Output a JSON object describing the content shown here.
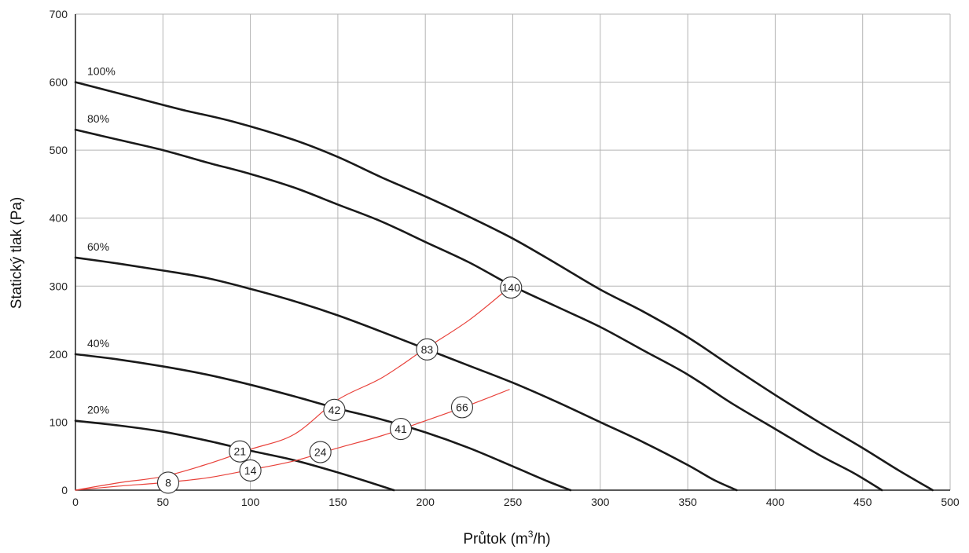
{
  "chart_data": {
    "type": "line",
    "title": "",
    "xlabel_main": "Průtok (m",
    "xlabel_sup": "3",
    "xlabel_tail": "/h)",
    "ylabel": "Statický tlak (Pa)",
    "xlim": [
      0,
      500
    ],
    "ylim": [
      0,
      700
    ],
    "x_ticks": [
      0,
      50,
      100,
      150,
      200,
      250,
      300,
      350,
      400,
      450,
      500
    ],
    "y_ticks": [
      0,
      100,
      200,
      300,
      400,
      500,
      600,
      700
    ],
    "grid": true,
    "colors": {
      "fan_curve": "#1a1a1a",
      "system_curve": "#e8413a",
      "grid": "#b5b5b5"
    },
    "series": [
      {
        "name": "100%",
        "kind": "fan",
        "x": [
          0,
          30,
          60,
          90,
          125,
          150,
          175,
          200,
          225,
          250,
          275,
          300,
          325,
          350,
          375,
          400,
          425,
          450,
          470,
          490
        ],
        "y": [
          600,
          580,
          560,
          542,
          515,
          490,
          460,
          432,
          402,
          370,
          333,
          295,
          262,
          225,
          182,
          140,
          100,
          62,
          30,
          0
        ]
      },
      {
        "name": "80%",
        "kind": "fan",
        "x": [
          0,
          25,
          50,
          75,
          100,
          125,
          150,
          175,
          200,
          225,
          250,
          275,
          300,
          325,
          350,
          375,
          400,
          425,
          445,
          461
        ],
        "y": [
          530,
          515,
          500,
          482,
          465,
          445,
          420,
          395,
          365,
          335,
          300,
          270,
          240,
          205,
          170,
          128,
          90,
          52,
          25,
          0
        ]
      },
      {
        "name": "60%",
        "kind": "fan",
        "x": [
          0,
          25,
          50,
          75,
          100,
          125,
          150,
          175,
          200,
          225,
          250,
          275,
          300,
          325,
          350,
          365,
          378
        ],
        "y": [
          342,
          333,
          323,
          312,
          296,
          278,
          257,
          233,
          208,
          183,
          158,
          130,
          100,
          70,
          37,
          15,
          0
        ]
      },
      {
        "name": "40%",
        "kind": "fan",
        "x": [
          0,
          25,
          50,
          75,
          100,
          125,
          150,
          175,
          200,
          225,
          250,
          270,
          283
        ],
        "y": [
          200,
          192,
          182,
          170,
          155,
          138,
          120,
          104,
          85,
          62,
          35,
          13,
          0
        ]
      },
      {
        "name": "20%",
        "kind": "fan",
        "x": [
          0,
          25,
          50,
          75,
          100,
          125,
          150,
          170,
          182
        ],
        "y": [
          102,
          95,
          86,
          73,
          58,
          44,
          26,
          10,
          0
        ]
      },
      {
        "name": "",
        "kind": "system",
        "x": [
          0,
          25,
          50,
          75,
          100,
          125,
          150,
          175,
          200,
          225,
          248
        ],
        "y": [
          0,
          11,
          20,
          38,
          60,
          82,
          133,
          165,
          208,
          250,
          298
        ]
      },
      {
        "name": "",
        "kind": "system",
        "x": [
          0,
          25,
          50,
          75,
          100,
          125,
          150,
          175,
          200,
          225,
          248
        ],
        "y": [
          0,
          6,
          11,
          18,
          30,
          43,
          62,
          80,
          102,
          125,
          148
        ]
      }
    ],
    "operating_points": [
      {
        "label": "140",
        "x": 249,
        "y": 298
      },
      {
        "label": "83",
        "x": 201,
        "y": 207
      },
      {
        "label": "42",
        "x": 148,
        "y": 118
      },
      {
        "label": "66",
        "x": 221,
        "y": 122
      },
      {
        "label": "41",
        "x": 186,
        "y": 90
      },
      {
        "label": "24",
        "x": 140,
        "y": 56
      },
      {
        "label": "21",
        "x": 94,
        "y": 57
      },
      {
        "label": "14",
        "x": 100,
        "y": 29
      },
      {
        "label": "8",
        "x": 53,
        "y": 11
      }
    ]
  }
}
